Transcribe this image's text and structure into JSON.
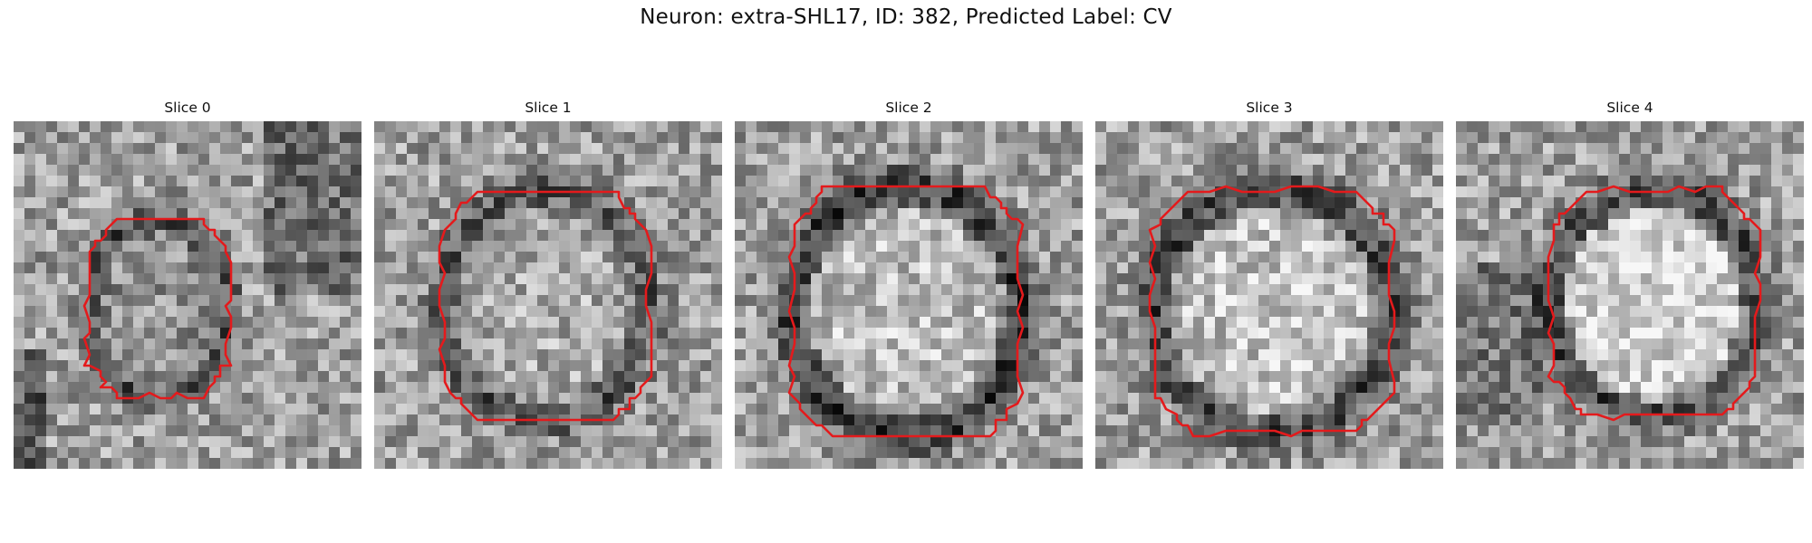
{
  "figure": {
    "title": "Neuron: extra-SHL17, ID: 382, Predicted Label: CV"
  },
  "colors": {
    "contour": "#e41a1c",
    "background": "#ffffff"
  },
  "slices": [
    {
      "title": "Slice 0"
    },
    {
      "title": "Slice 1"
    },
    {
      "title": "Slice 2"
    },
    {
      "title": "Slice 3"
    },
    {
      "title": "Slice 4"
    }
  ]
}
